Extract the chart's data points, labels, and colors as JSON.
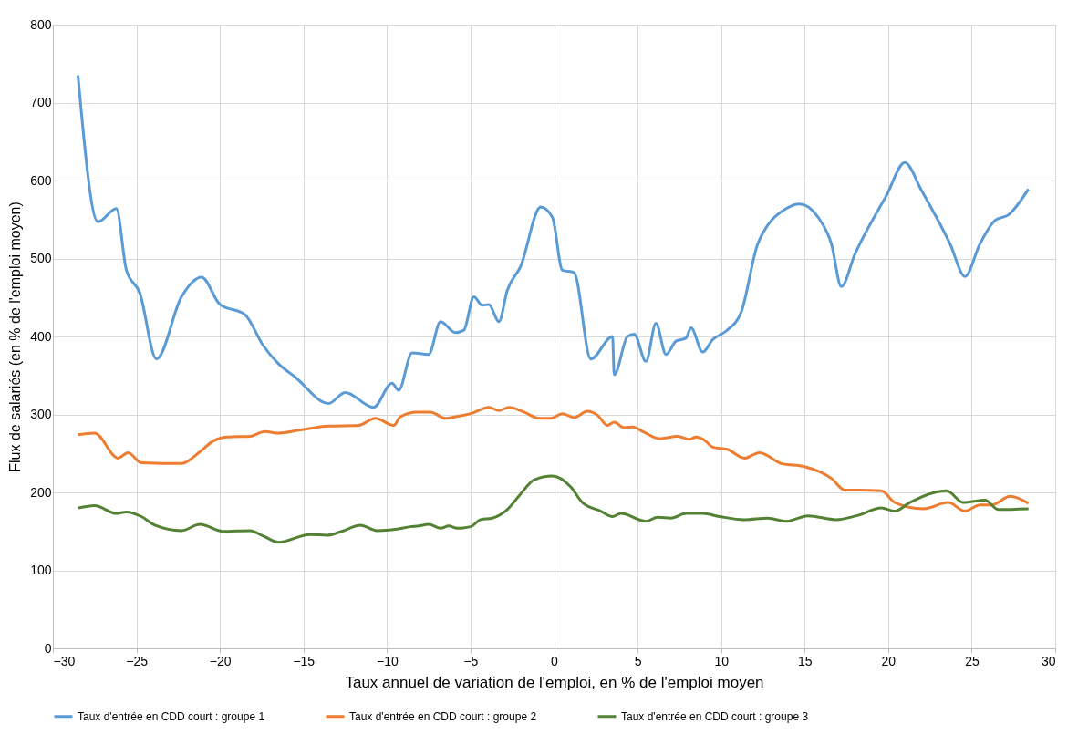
{
  "chart_data": {
    "type": "line",
    "xlabel": "Taux annuel de variation de l'emploi, en % de l'emploi moyen",
    "ylabel": "Flux de salariés (en % de l'emploi moyen)",
    "xlim": [
      -30,
      30
    ],
    "xticks": [
      -30,
      -25,
      -20,
      -15,
      -10,
      -5,
      0,
      5,
      10,
      15,
      20,
      25,
      30
    ],
    "ylim": [
      0,
      800
    ],
    "yticks": [
      0,
      100,
      200,
      300,
      400,
      500,
      600,
      700,
      800
    ],
    "grid": true,
    "legend": "bottom",
    "marker": "none",
    "line_style": "solid",
    "series": [
      {
        "name": "Taux d'entrée en CDD court : groupe 1",
        "color": "#5b9bd5",
        "x": [
          -28.5,
          -27.3,
          -26.2,
          -25.6,
          -24.8,
          -23.8,
          -22.3,
          -21.1,
          -20.0,
          -18.5,
          -17.4,
          -16.5,
          -15.5,
          -13.5,
          -12.5,
          -10.8,
          -9.7,
          -9.3,
          -8.5,
          -7.5,
          -6.8,
          -5.9,
          -5.4,
          -4.8,
          -4.3,
          -3.9,
          -3.3,
          -2.8,
          -2.0,
          -0.8,
          -0.1,
          0.5,
          1.2,
          2.2,
          3.5,
          3.6,
          4.4,
          4.8,
          5.5,
          6.1,
          6.7,
          7.3,
          7.9,
          8.2,
          8.9,
          9.5,
          10.3,
          11.2,
          12.2,
          13.9,
          14.7,
          15.8,
          16.6,
          17.2,
          18.0,
          19.9,
          21.0,
          22.0,
          23.7,
          24.6,
          25.5,
          26.4,
          27.2,
          28.4
        ],
        "values": [
          735,
          547,
          564,
          485,
          456,
          371,
          451,
          476,
          441,
          428,
          388,
          365,
          348,
          314,
          328,
          309,
          340,
          331,
          379,
          377,
          419,
          405,
          408,
          451,
          440,
          441,
          419,
          459,
          490,
          566,
          553,
          485,
          482,
          371,
          400,
          351,
          400,
          403,
          368,
          417,
          377,
          394,
          398,
          411,
          380,
          396,
          407,
          431,
          519,
          564,
          570,
          553,
          519,
          464,
          505,
          581,
          623,
          587,
          519,
          477,
          519,
          549,
          556,
          589
        ]
      },
      {
        "name": "Taux d'entrée en CDD court : groupe 2",
        "color": "#ed7d31",
        "x": [
          -28.5,
          -27.5,
          -26.1,
          -25.5,
          -24.7,
          -22.3,
          -21.2,
          -20.4,
          -19.6,
          -18.2,
          -17.3,
          -16.5,
          -15.2,
          -13.5,
          -11.7,
          -10.7,
          -9.6,
          -9.2,
          -8.2,
          -7.4,
          -6.5,
          -5.9,
          -5.0,
          -3.9,
          -3.3,
          -2.7,
          -1.8,
          -0.9,
          -0.2,
          0.5,
          1.2,
          2.0,
          2.6,
          3.2,
          3.6,
          4.2,
          4.7,
          5.4,
          6.3,
          7.4,
          8.1,
          8.5,
          9.0,
          9.5,
          10.4,
          11.4,
          12.3,
          13.6,
          15.0,
          16.6,
          17.4,
          18.2,
          19.6,
          20.4,
          22.1,
          23.6,
          24.6,
          25.5,
          26.2,
          27.3,
          28.4
        ],
        "values": [
          274,
          276,
          244,
          251,
          238,
          237,
          252,
          266,
          271,
          272,
          278,
          276,
          280,
          285,
          286,
          295,
          286,
          297,
          303,
          303,
          295,
          297,
          301,
          309,
          305,
          309,
          303,
          295,
          295,
          301,
          296,
          304,
          299,
          286,
          290,
          283,
          284,
          277,
          269,
          272,
          268,
          271,
          267,
          258,
          255,
          244,
          251,
          237,
          233,
          218,
          203,
          203,
          202,
          187,
          179,
          187,
          176,
          184,
          184,
          195,
          186
        ]
      },
      {
        "name": "Taux d'entrée en CDD court : groupe 3",
        "color": "#548235",
        "x": [
          -28.5,
          -27.5,
          -26.2,
          -25.6,
          -24.7,
          -23.9,
          -22.3,
          -21.2,
          -19.8,
          -18.2,
          -17.4,
          -16.5,
          -14.6,
          -13.6,
          -12.7,
          -11.6,
          -10.6,
          -9.4,
          -8.6,
          -8.1,
          -7.5,
          -6.8,
          -6.3,
          -5.8,
          -5.0,
          -4.4,
          -3.7,
          -2.8,
          -2.0,
          -1.2,
          -0.1,
          1.0,
          1.7,
          2.8,
          3.5,
          4.0,
          5.5,
          6.2,
          7.0,
          7.9,
          8.9,
          9.9,
          11.4,
          12.8,
          13.9,
          15.2,
          16.9,
          18.1,
          19.6,
          20.4,
          21.3,
          23.5,
          24.5,
          25.8,
          26.6,
          28.4
        ],
        "values": [
          180,
          183,
          173,
          175,
          169,
          158,
          151,
          159,
          150,
          151,
          144,
          136,
          146,
          145,
          150,
          158,
          151,
          153,
          156,
          157,
          159,
          154,
          157,
          154,
          156,
          165,
          167,
          178,
          198,
          216,
          221,
          207,
          187,
          176,
          169,
          173,
          163,
          168,
          167,
          173,
          173,
          169,
          165,
          167,
          163,
          170,
          165,
          170,
          180,
          176,
          187,
          202,
          187,
          190,
          178,
          179
        ]
      }
    ]
  }
}
